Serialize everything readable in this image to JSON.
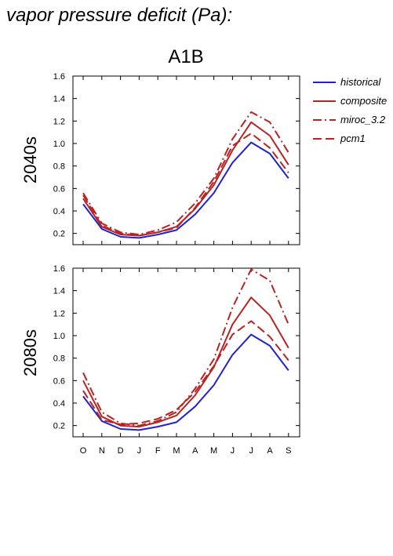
{
  "page_title": "vapor pressure deficit (Pa):",
  "scenario_title": "A1B",
  "legend": [
    {
      "name": "historical",
      "color": "#2222cc",
      "dash": "solid"
    },
    {
      "name": "composite",
      "color": "#bb2222",
      "dash": "solid"
    },
    {
      "name": "miroc_3.2",
      "color": "#bb2222",
      "dash": "dashdot"
    },
    {
      "name": "pcm1",
      "color": "#bb2222",
      "dash": "dash"
    }
  ],
  "chart_data": [
    {
      "type": "line",
      "panel_label": "2040s",
      "categories": [
        "O",
        "N",
        "D",
        "J",
        "F",
        "M",
        "A",
        "M",
        "J",
        "J",
        "A",
        "S"
      ],
      "ylim": [
        0.1,
        1.6
      ],
      "yticks": [
        "0.2",
        "0.4",
        "0.6",
        "0.8",
        "1.0",
        "1.2",
        "1.4",
        "1.6"
      ],
      "series": [
        {
          "name": "historical",
          "values": [
            0.46,
            0.24,
            0.17,
            0.16,
            0.19,
            0.23,
            0.37,
            0.56,
            0.83,
            1.01,
            0.91,
            0.69
          ]
        },
        {
          "name": "composite",
          "values": [
            0.51,
            0.26,
            0.19,
            0.18,
            0.21,
            0.26,
            0.42,
            0.63,
            0.94,
            1.19,
            1.07,
            0.81
          ]
        },
        {
          "name": "miroc_3.2",
          "values": [
            0.56,
            0.29,
            0.21,
            0.19,
            0.23,
            0.3,
            0.47,
            0.69,
            1.04,
            1.28,
            1.19,
            0.92
          ]
        },
        {
          "name": "pcm1",
          "values": [
            0.54,
            0.27,
            0.2,
            0.18,
            0.21,
            0.25,
            0.43,
            0.66,
            0.98,
            1.09,
            0.96,
            0.74
          ]
        }
      ]
    },
    {
      "type": "line",
      "panel_label": "2080s",
      "categories": [
        "O",
        "N",
        "D",
        "J",
        "F",
        "M",
        "A",
        "M",
        "J",
        "J",
        "A",
        "S"
      ],
      "ylim": [
        0.1,
        1.6
      ],
      "yticks": [
        "0.2",
        "0.4",
        "0.6",
        "0.8",
        "1.0",
        "1.2",
        "1.4",
        "1.6"
      ],
      "series": [
        {
          "name": "historical",
          "values": [
            0.46,
            0.24,
            0.17,
            0.16,
            0.19,
            0.23,
            0.37,
            0.56,
            0.83,
            1.01,
            0.91,
            0.69
          ]
        },
        {
          "name": "composite",
          "values": [
            0.6,
            0.28,
            0.2,
            0.19,
            0.23,
            0.29,
            0.47,
            0.72,
            1.1,
            1.34,
            1.18,
            0.89
          ]
        },
        {
          "name": "miroc_3.2",
          "values": [
            0.67,
            0.32,
            0.22,
            0.2,
            0.24,
            0.32,
            0.53,
            0.79,
            1.25,
            1.59,
            1.49,
            1.1
          ]
        },
        {
          "name": "pcm1",
          "values": [
            0.51,
            0.25,
            0.21,
            0.22,
            0.26,
            0.34,
            0.5,
            0.73,
            1.01,
            1.13,
            0.99,
            0.78
          ]
        }
      ]
    }
  ]
}
